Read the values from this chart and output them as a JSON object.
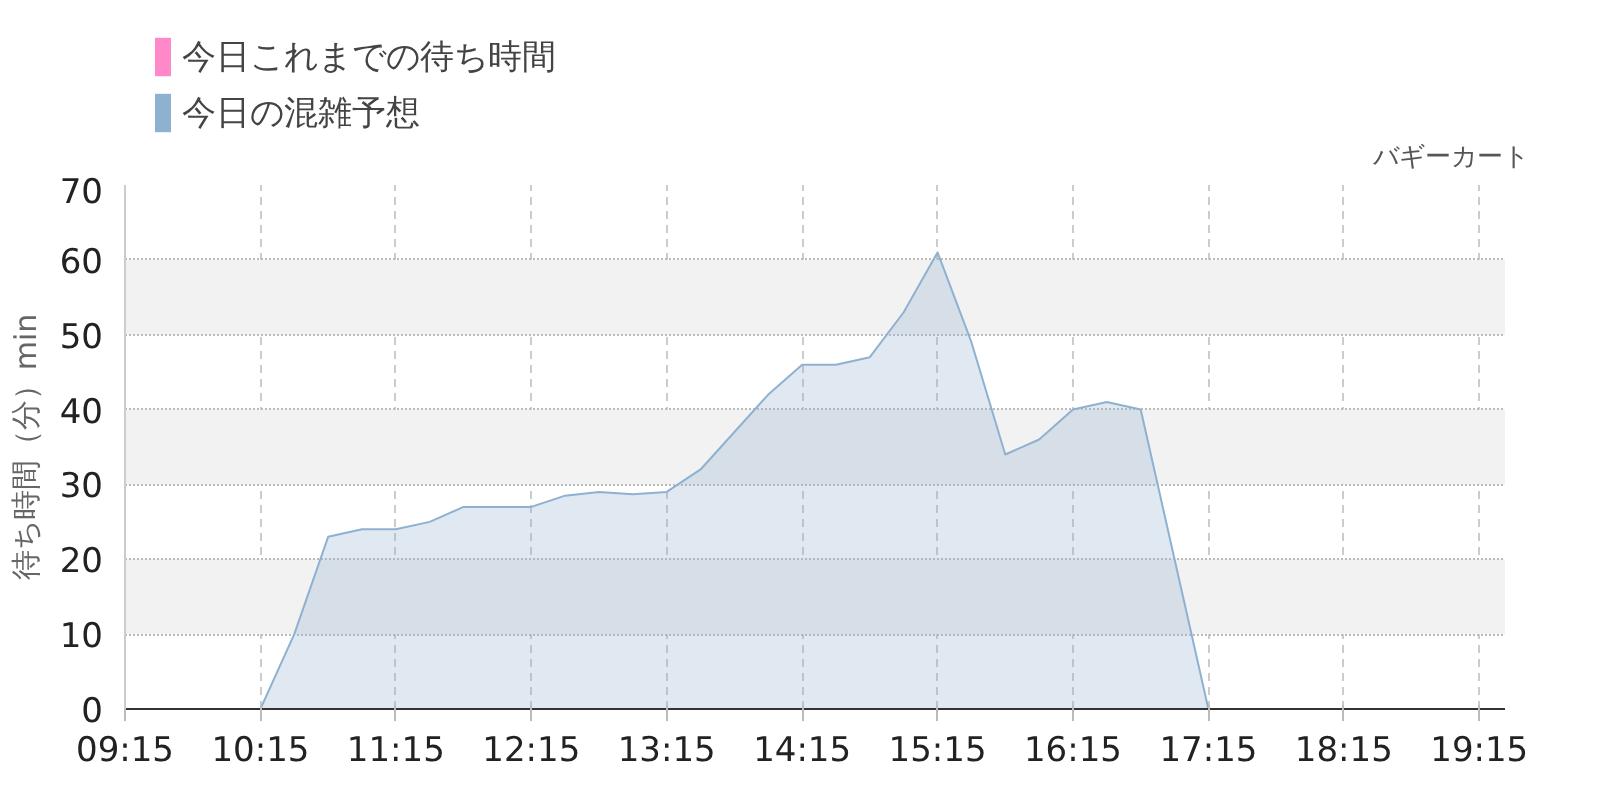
{
  "chart_data": {
    "type": "area",
    "subtitle": "バギーカート",
    "ylabel": "待ち時間（分）min",
    "x": [
      9.25,
      9.75,
      10.0,
      10.25,
      10.5,
      10.75,
      11.0,
      11.25,
      11.5,
      11.75,
      12.0,
      12.25,
      12.5,
      12.75,
      13.0,
      13.25,
      13.5,
      13.75,
      14.0,
      14.25,
      14.5,
      14.75,
      15.0,
      15.25,
      15.5,
      15.75,
      16.0,
      16.25,
      16.5,
      16.75,
      17.0,
      17.25,
      17.5,
      18.0,
      19.44
    ],
    "series": [
      {
        "name": "今日これまでの待ち時間",
        "color": "#ff88c8",
        "values": [
          null,
          null,
          null,
          null,
          null,
          null,
          null,
          null,
          null,
          null,
          null,
          null,
          null,
          null,
          null,
          null,
          null,
          null,
          null,
          null,
          null,
          null,
          null,
          null,
          null,
          null,
          null,
          null,
          null,
          null,
          null,
          null,
          null,
          null,
          null
        ]
      },
      {
        "name": "今日の混雑予想",
        "color": "#8fb1d1",
        "values": [
          0,
          0,
          0,
          0,
          10,
          23,
          24,
          24,
          25,
          27,
          27,
          27,
          28.5,
          29,
          28.7,
          29,
          32,
          37,
          42,
          46,
          46,
          47,
          53,
          61,
          49,
          34,
          36,
          40,
          41,
          40,
          20,
          0,
          0,
          0,
          0
        ]
      }
    ],
    "xlim": [
      9.25,
      19.44
    ],
    "xticks": [
      {
        "value": 9.25,
        "label": "09:15"
      },
      {
        "value": 10.25,
        "label": "10:15"
      },
      {
        "value": 11.25,
        "label": "11:15"
      },
      {
        "value": 12.25,
        "label": "12:15"
      },
      {
        "value": 13.25,
        "label": "13:15"
      },
      {
        "value": 14.25,
        "label": "14:15"
      },
      {
        "value": 15.25,
        "label": "15:15"
      },
      {
        "value": 16.25,
        "label": "16:15"
      },
      {
        "value": 17.25,
        "label": "17:15"
      },
      {
        "value": 18.25,
        "label": "18:15"
      },
      {
        "value": 19.25,
        "label": "19:15"
      }
    ],
    "ylim": [
      0,
      70
    ],
    "yticks": [
      0,
      10,
      20,
      30,
      40,
      50,
      60,
      70
    ],
    "grid": true,
    "legend": "top left"
  }
}
